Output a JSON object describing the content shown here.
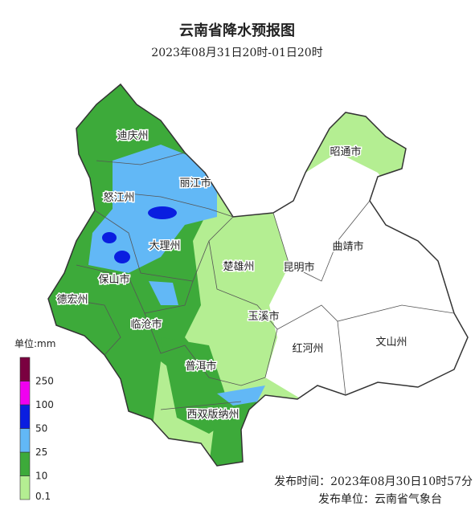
{
  "header": {
    "title": "云南省降水预报图",
    "subtitle": "2023年08月31日20时-01日20时"
  },
  "regions": [
    {
      "label": "迪庆州"
    },
    {
      "label": "丽江市"
    },
    {
      "label": "怒江州"
    },
    {
      "label": "大理州"
    },
    {
      "label": "楚雄州"
    },
    {
      "label": "昆明市"
    },
    {
      "label": "曲靖市"
    },
    {
      "label": "昭通市"
    },
    {
      "label": "保山市"
    },
    {
      "label": "德宏州"
    },
    {
      "label": "临沧市"
    },
    {
      "label": "玉溪市"
    },
    {
      "label": "红河州"
    },
    {
      "label": "文山州"
    },
    {
      "label": "普洱市"
    },
    {
      "label": "西双版纳州"
    }
  ],
  "legend": {
    "title": "单位:mm",
    "levels": [
      {
        "value": 0.1,
        "color": "#b4ee92"
      },
      {
        "value": 10,
        "color": "#3daa3a"
      },
      {
        "value": 25,
        "color": "#62b8f6"
      },
      {
        "value": 50,
        "color": "#0a1ee0"
      },
      {
        "value": 100,
        "color": "#f000f0"
      },
      {
        "value": 250,
        "color": "#7a0040"
      }
    ]
  },
  "footer": {
    "issue_time": "发布时间：2023年08月30日10时57分",
    "issuer": "发布单位：云南省气象台"
  }
}
